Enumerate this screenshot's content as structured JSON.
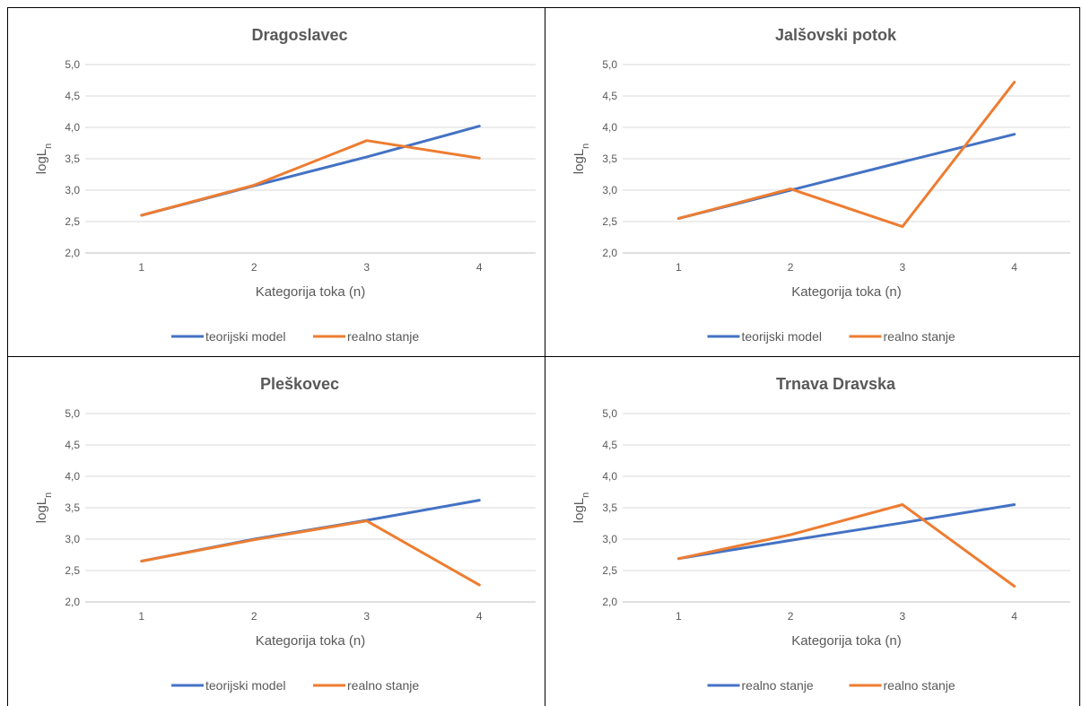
{
  "colors": {
    "series1": "#4472C4",
    "series2": "#ED7D31",
    "grid": "#D9D9D9",
    "axis": "#BFBFBF"
  },
  "chart_data": [
    {
      "type": "line",
      "title": "Dragoslavec",
      "xlabel": "Kategorija toka (n)",
      "ylabel": "logL",
      "ylabel_sub": "n",
      "ylim": [
        2.0,
        5.0
      ],
      "yticks": [
        "2,0",
        "2,5",
        "3,0",
        "3,5",
        "4,0",
        "4,5",
        "5,0"
      ],
      "categories": [
        "1",
        "2",
        "3",
        "4"
      ],
      "legend_position": "bottom",
      "series": [
        {
          "name": "teorijski model",
          "values": [
            2.6,
            3.07,
            3.53,
            4.02
          ]
        },
        {
          "name": "realno stanje",
          "values": [
            2.6,
            3.08,
            3.79,
            3.51
          ]
        }
      ]
    },
    {
      "type": "line",
      "title": "Jalšovski potok",
      "xlabel": "Kategorija toka (n)",
      "ylabel": "logL",
      "ylabel_sub": "n",
      "ylim": [
        2.0,
        5.0
      ],
      "yticks": [
        "2,0",
        "2,5",
        "3,0",
        "3,5",
        "4,0",
        "4,5",
        "5,0"
      ],
      "categories": [
        "1",
        "2",
        "3",
        "4"
      ],
      "legend_position": "bottom",
      "series": [
        {
          "name": "teorijski model",
          "values": [
            2.55,
            3.0,
            3.45,
            3.89
          ]
        },
        {
          "name": "realno stanje",
          "values": [
            2.55,
            3.02,
            2.42,
            4.72
          ]
        }
      ]
    },
    {
      "type": "line",
      "title": "Pleškovec",
      "xlabel": "Kategorija toka (n)",
      "ylabel": "logL",
      "ylabel_sub": "n",
      "ylim": [
        2.0,
        5.0
      ],
      "yticks": [
        "2,0",
        "2,5",
        "3,0",
        "3,5",
        "4,0",
        "4,5",
        "5,0"
      ],
      "categories": [
        "1",
        "2",
        "3",
        "4"
      ],
      "legend_position": "bottom",
      "series": [
        {
          "name": "teorijski model",
          "values": [
            2.65,
            3.0,
            3.3,
            3.62
          ]
        },
        {
          "name": "realno stanje",
          "values": [
            2.65,
            2.99,
            3.29,
            2.27
          ]
        }
      ]
    },
    {
      "type": "line",
      "title": "Trnava Dravska",
      "xlabel": "Kategorija toka (n)",
      "ylabel": "logL",
      "ylabel_sub": "n",
      "ylim": [
        2.0,
        5.0
      ],
      "yticks": [
        "2,0",
        "2,5",
        "3,0",
        "3,5",
        "4,0",
        "4,5",
        "5,0"
      ],
      "categories": [
        "1",
        "2",
        "3",
        "4"
      ],
      "legend_position": "bottom",
      "series": [
        {
          "name": "realno stanje",
          "values": [
            2.69,
            2.98,
            3.26,
            3.55
          ]
        },
        {
          "name": "realno stanje",
          "values": [
            2.69,
            3.07,
            3.55,
            2.25
          ]
        }
      ]
    }
  ]
}
